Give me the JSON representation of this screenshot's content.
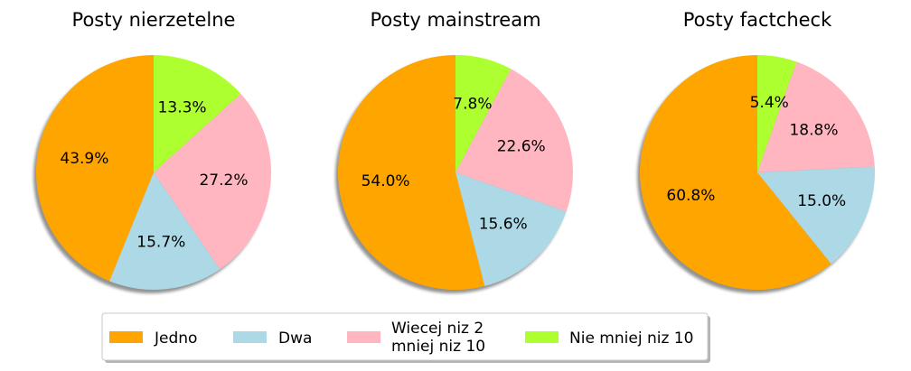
{
  "chart_data": [
    {
      "type": "pie",
      "title": "Posty nierzetelne",
      "labels": [
        "Jedno",
        "Dwa",
        "Wiecej niz 2\nmniej niz 10",
        "Nie mniej niz 10"
      ],
      "values": [
        43.9,
        15.7,
        27.2,
        13.3
      ],
      "value_labels": [
        "43.9%",
        "15.7%",
        "27.2%",
        "13.3%"
      ],
      "start_angle_deg": 90,
      "direction": "counterclockwise",
      "shadow": true
    },
    {
      "type": "pie",
      "title": "Posty mainstream",
      "labels": [
        "Jedno",
        "Dwa",
        "Wiecej niz 2\nmniej niz 10",
        "Nie mniej niz 10"
      ],
      "values": [
        54.0,
        15.6,
        22.6,
        7.8
      ],
      "value_labels": [
        "54.0%",
        "15.6%",
        "22.6%",
        "7.8%"
      ],
      "start_angle_deg": 90,
      "direction": "counterclockwise",
      "shadow": true
    },
    {
      "type": "pie",
      "title": "Posty factcheck",
      "labels": [
        "Jedno",
        "Dwa",
        "Wiecej niz 2\nmniej niz 10",
        "Nie mniej niz 10"
      ],
      "values": [
        60.8,
        15.0,
        18.8,
        5.4
      ],
      "value_labels": [
        "60.8%",
        "15.0%",
        "18.8%",
        "5.4%"
      ],
      "start_angle_deg": 90,
      "direction": "counterclockwise",
      "shadow": true
    }
  ],
  "legend": {
    "placement": "bottom-center",
    "items": [
      {
        "label": "Jedno",
        "color": "#FFA500"
      },
      {
        "label": "Dwa",
        "color": "#ADD8E6"
      },
      {
        "label_lines": [
          "Wiecej niz 2",
          "mniej niz 10"
        ],
        "color": "#FFB6C1"
      },
      {
        "label": "Nie mniej niz 10",
        "color": "#ADFF2F"
      }
    ]
  },
  "colors": {
    "Jedno": "#FFA500",
    "Dwa": "#ADD8E6",
    "Wiecej": "#FFB6C1",
    "NieMniej": "#ADFF2F",
    "shadow": "#808080",
    "legend_border": "#c8c8c8"
  }
}
